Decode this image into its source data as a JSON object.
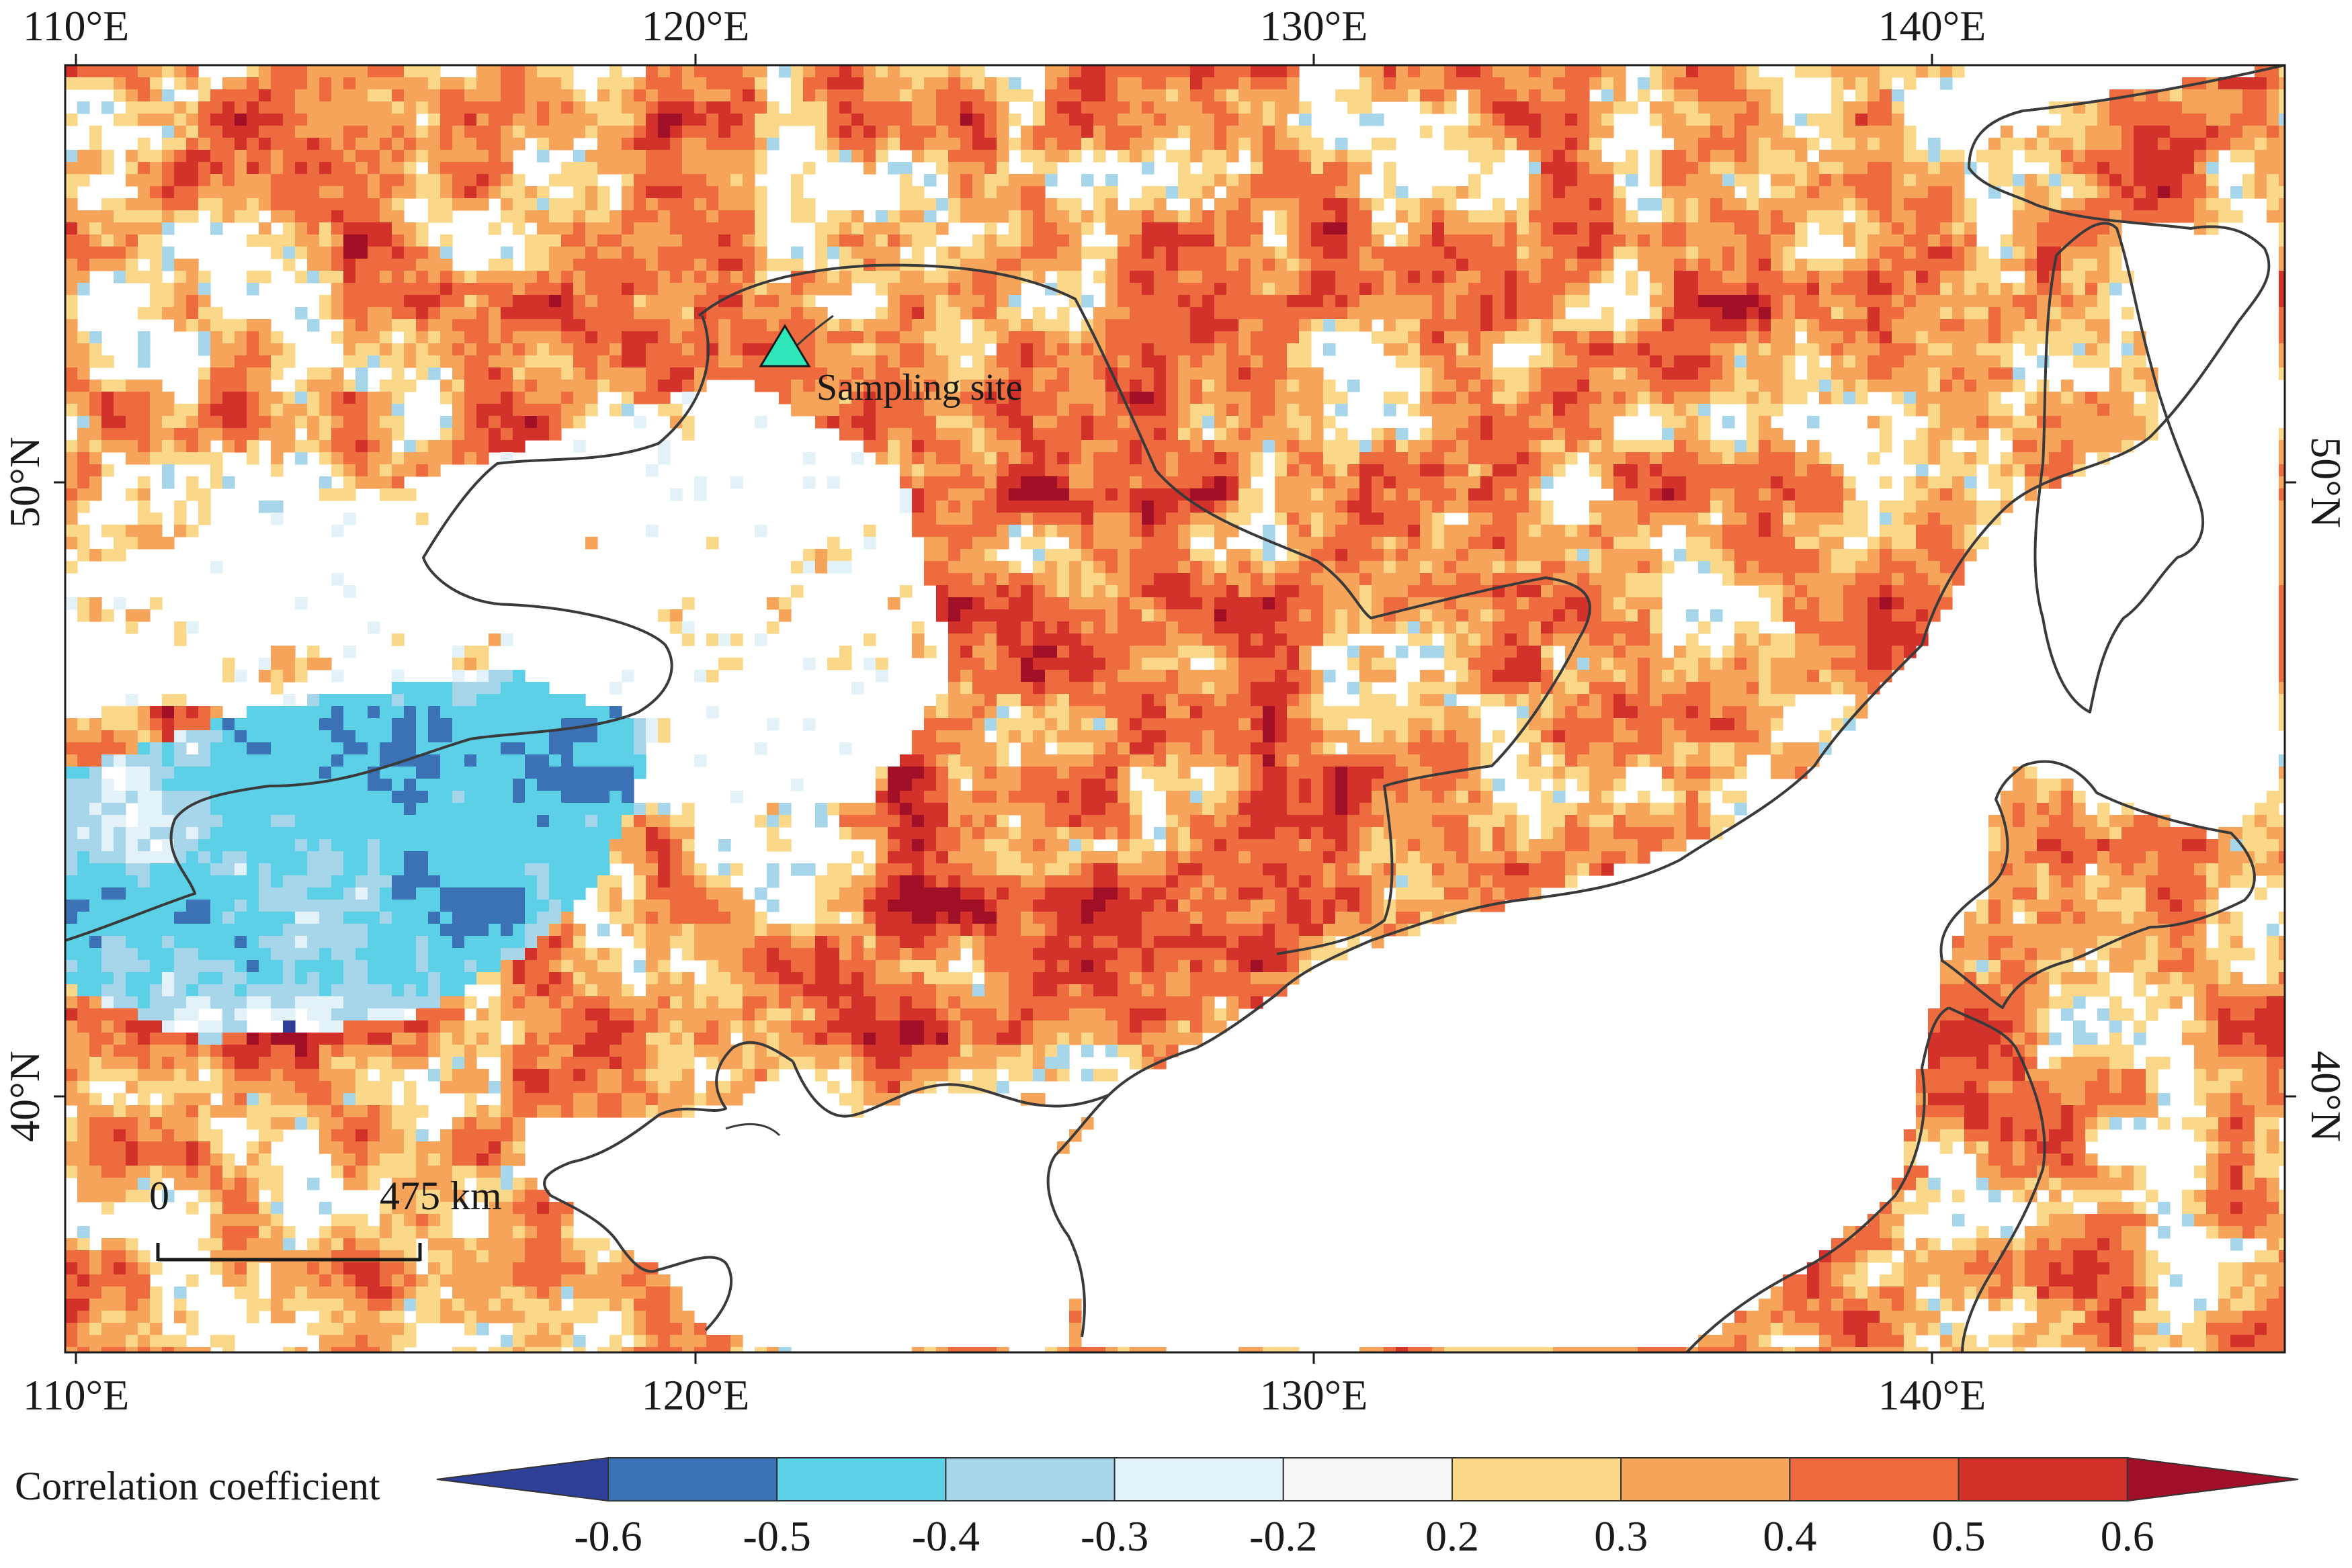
{
  "map": {
    "lon_labels": [
      "110°E",
      "120°E",
      "130°E",
      "140°E"
    ],
    "lat_labels": [
      "50°N",
      "40°N"
    ],
    "site": {
      "label": "Sampling site",
      "color": "#2ee6b8"
    },
    "scale_bar": {
      "start": "0",
      "end": "475 km"
    }
  },
  "colorbar": {
    "title": "Correlation coefficient",
    "ticks": [
      "-0.6",
      "-0.5",
      "-0.4",
      "-0.3",
      "-0.2",
      "0.2",
      "0.3",
      "0.4",
      "0.5",
      "0.6"
    ],
    "colors": [
      "#2e3f99",
      "#3a72b5",
      "#5bd0e6",
      "#a7d6ea",
      "#e2f2f8",
      "#f6f6f6",
      "#fbd889",
      "#f6a45a",
      "#ee6a3f",
      "#d2322a",
      "#a11026"
    ]
  }
}
